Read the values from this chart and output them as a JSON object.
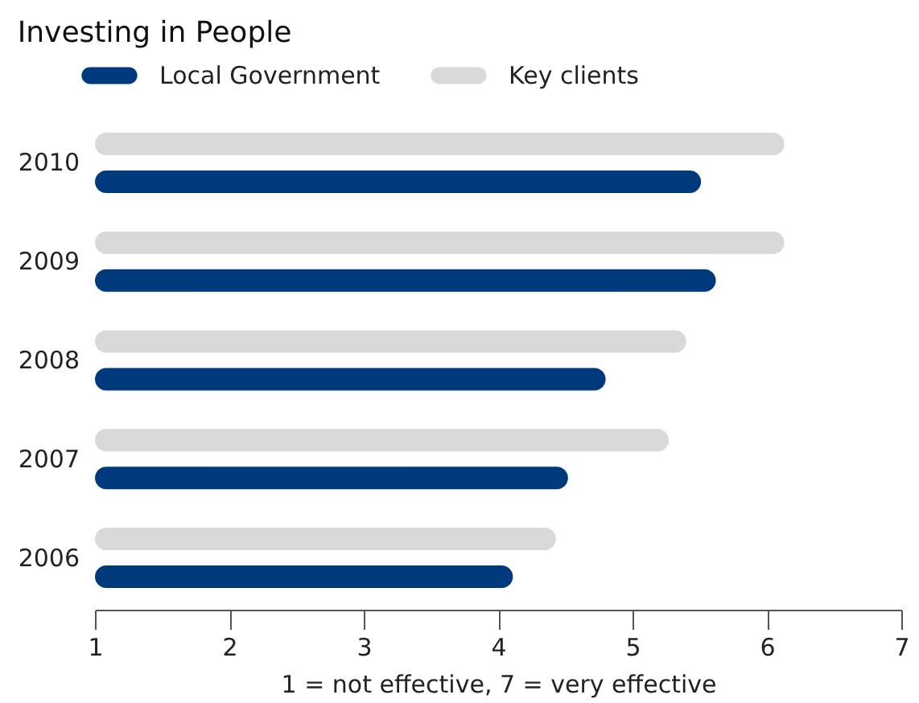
{
  "chart_data": {
    "type": "bar",
    "orientation": "horizontal",
    "title": "Investing in People",
    "xlabel": "1 = not effective, 7 = very effective",
    "categories": [
      "2010",
      "2009",
      "2008",
      "2007",
      "2006"
    ],
    "series": [
      {
        "name": "Local Government",
        "color": "#003a7d",
        "values": [
          5.51,
          5.62,
          4.8,
          4.52,
          4.11
        ]
      },
      {
        "name": "Key clients",
        "color": "#d9d9db",
        "values": [
          6.13,
          6.13,
          5.4,
          5.27,
          4.43
        ]
      }
    ],
    "xlim": [
      1,
      7
    ],
    "xticks": [
      1,
      2,
      3,
      4,
      5,
      6,
      7
    ],
    "grid": false,
    "legend": "top left"
  }
}
